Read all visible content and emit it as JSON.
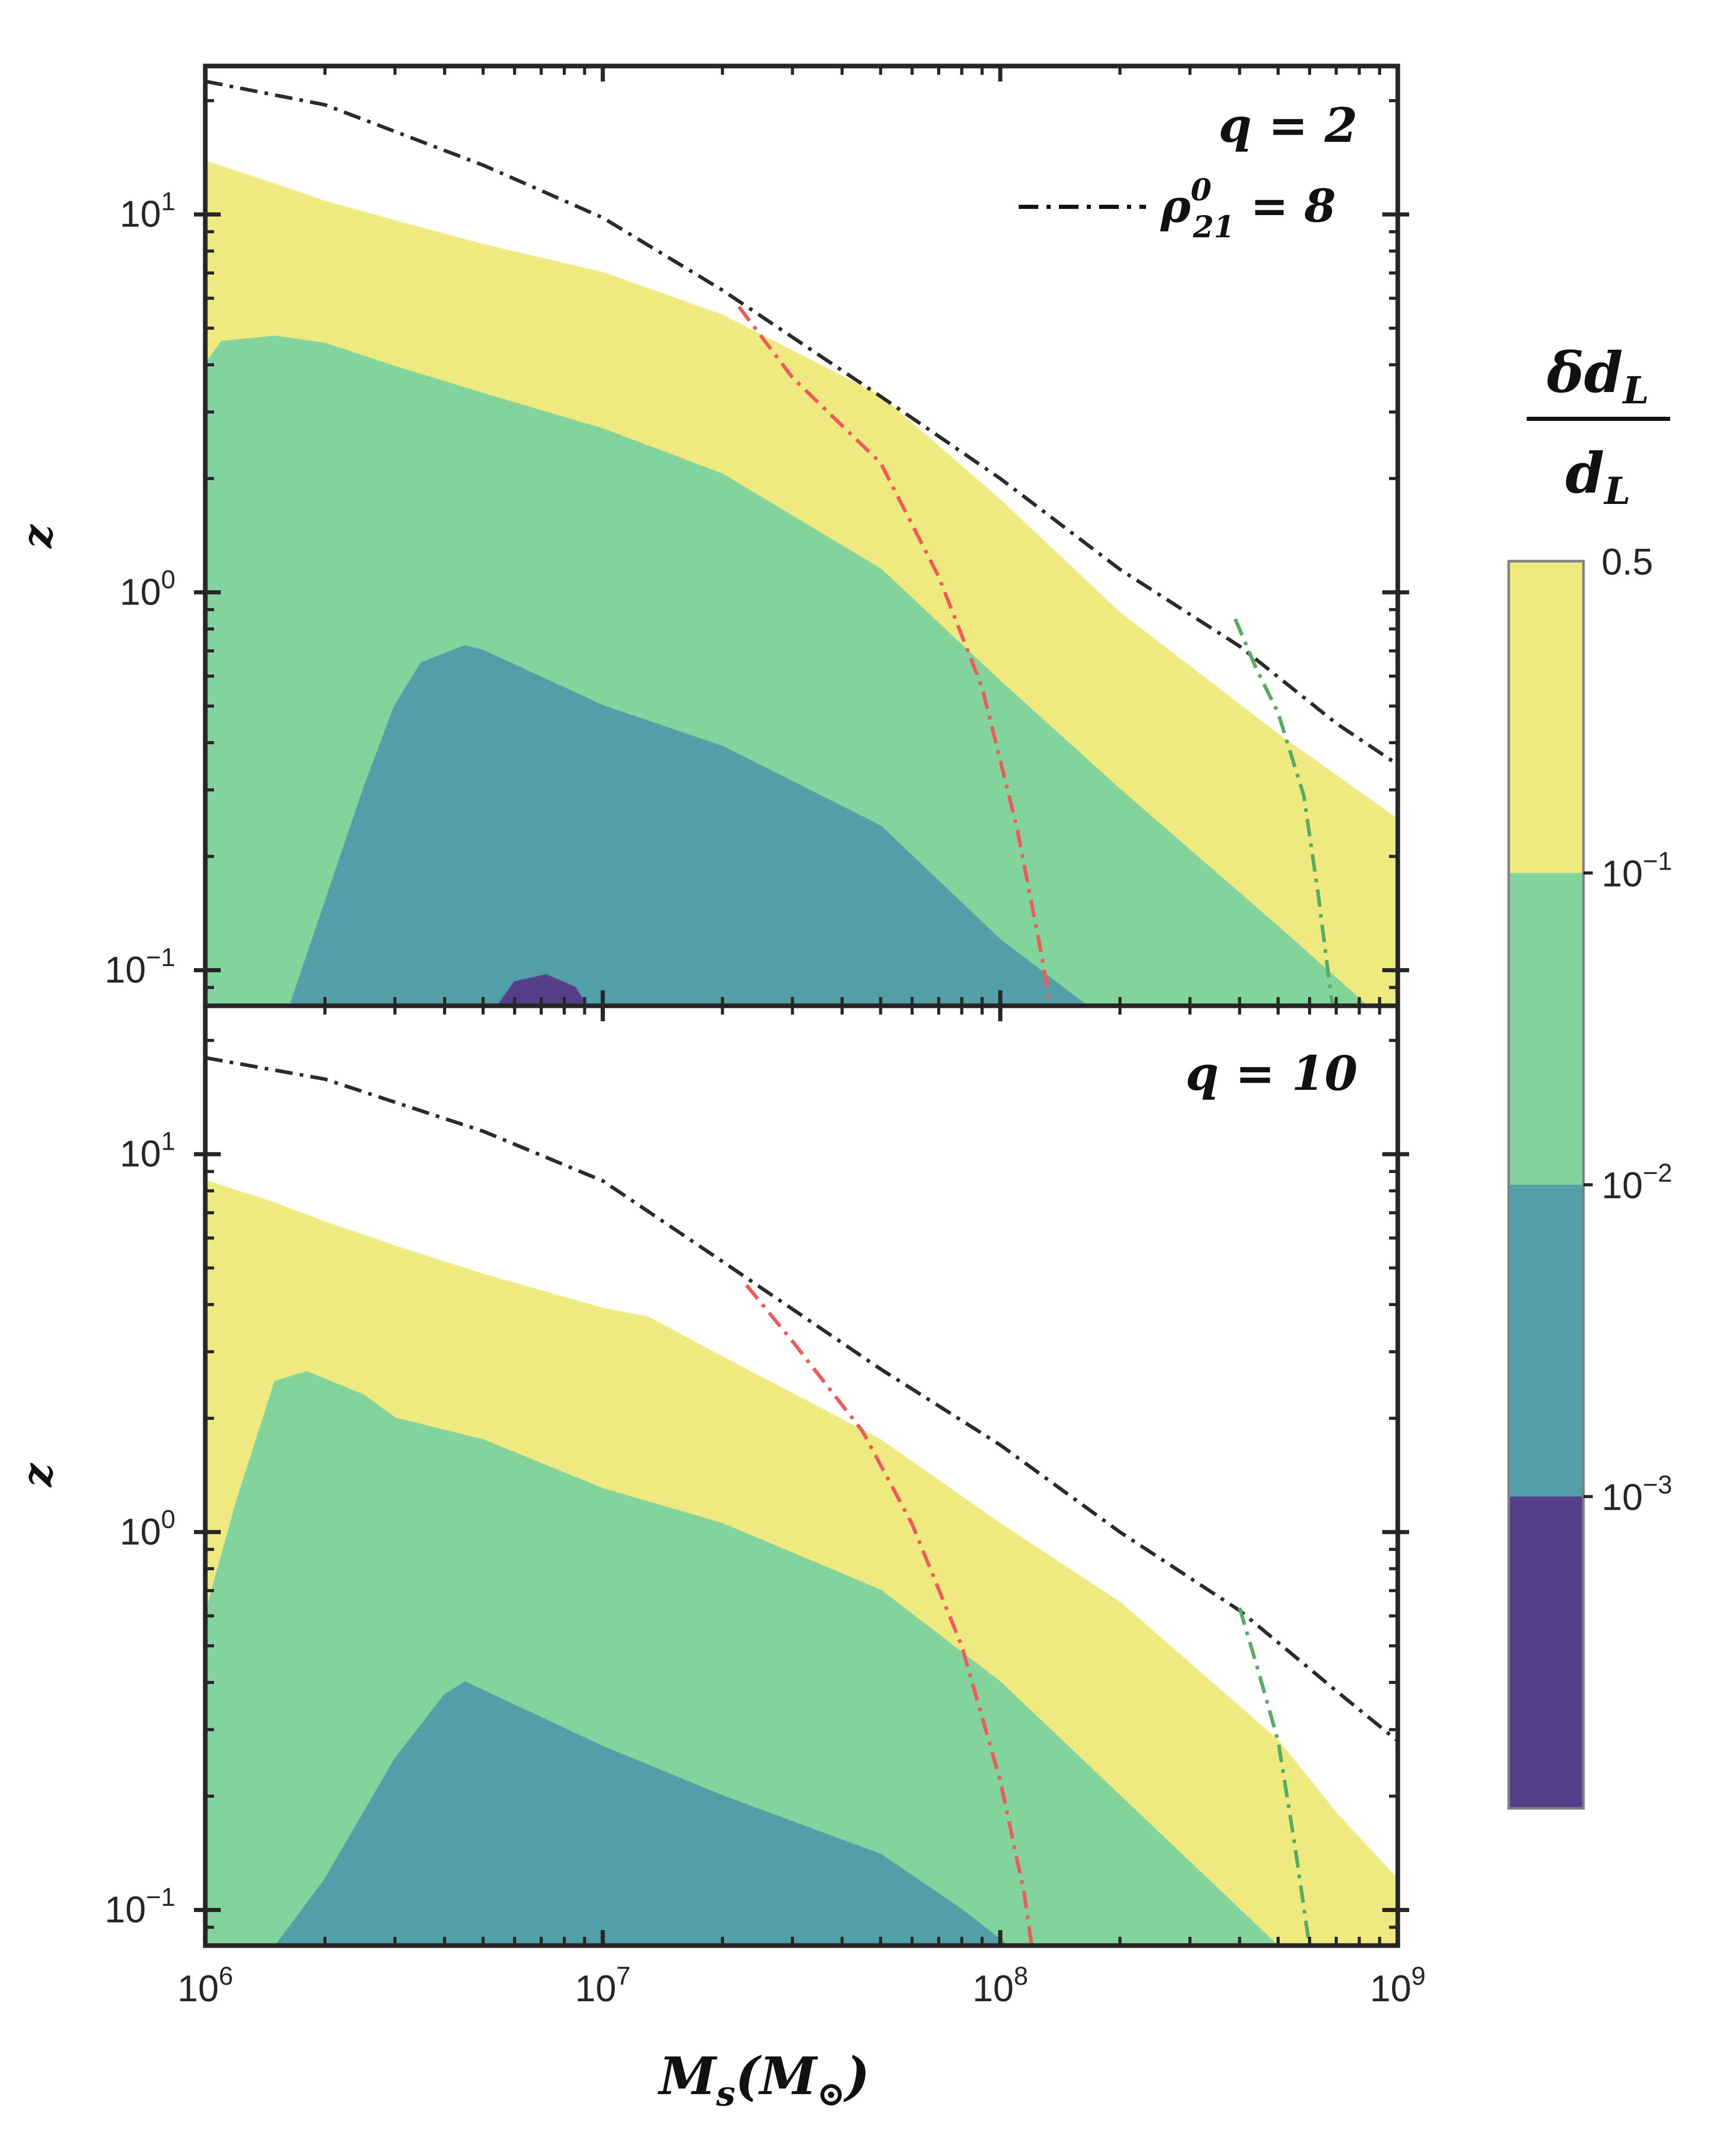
{
  "chart_data": [
    {
      "type": "contourf",
      "title": "",
      "panel_label": "q = 2",
      "xlabel": "M_s(M_⊙)",
      "ylabel": "z",
      "xscale": "log",
      "yscale": "log",
      "xlim": [
        1000000,
        1000000000
      ],
      "ylim": [
        0.08,
        25
      ],
      "grid": false,
      "legend": {
        "placement": "top-right",
        "entries": [
          {
            "label_base": "ρ",
            "label_sup": "0",
            "label_sub": "21",
            "label_rest": " = 8",
            "linestyle": "dashdot",
            "color": "#2b2b2b"
          }
        ]
      },
      "regions": [
        {
          "level": "0.1 – 0.5",
          "color": "#efea80",
          "upper": [
            [
              1000000.0,
              13.8
            ],
            [
              1500000.0,
              12.0
            ],
            [
              2000000.0,
              10.8
            ],
            [
              3000000.0,
              9.6
            ],
            [
              5000000.0,
              8.3
            ],
            [
              10000000.0,
              7.0
            ],
            [
              20000000.0,
              5.4
            ],
            [
              50000000.0,
              3.3
            ],
            [
              100000000.0,
              1.75
            ],
            [
              200000000.0,
              0.88
            ],
            [
              500000000.0,
              0.42
            ],
            [
              1000000000.0,
              0.25
            ]
          ]
        },
        {
          "level": "0.01 – 0.1",
          "color": "#82d39c",
          "upper": [
            [
              1000000.0,
              4.0
            ],
            [
              1100000.0,
              4.6
            ],
            [
              1500000.0,
              4.75
            ],
            [
              2000000.0,
              4.55
            ],
            [
              3000000.0,
              3.95
            ],
            [
              5000000.0,
              3.35
            ],
            [
              10000000.0,
              2.7
            ],
            [
              20000000.0,
              2.05
            ],
            [
              50000000.0,
              1.15
            ],
            [
              100000000.0,
              0.58
            ],
            [
              200000000.0,
              0.3
            ],
            [
              500000000.0,
              0.13
            ],
            [
              900000000.0,
              0.075
            ]
          ]
        },
        {
          "level": "0.001 – 0.01",
          "color": "#529ea9",
          "upper": [
            [
              1600000.0,
              0.075
            ],
            [
              2500000.0,
              0.3
            ],
            [
              3000000.0,
              0.5
            ],
            [
              3500000.0,
              0.65
            ],
            [
              4500000.0,
              0.72
            ],
            [
              5000000.0,
              0.7
            ],
            [
              10000000.0,
              0.5
            ],
            [
              20000000.0,
              0.39
            ],
            [
              50000000.0,
              0.24
            ],
            [
              100000000.0,
              0.12
            ],
            [
              180000000.0,
              0.075
            ]
          ]
        },
        {
          "level": "< 0.001",
          "color": "#553f8a",
          "upper": [
            [
              5200000.0,
              0.075
            ],
            [
              6000000.0,
              0.093
            ],
            [
              7200000.0,
              0.097
            ],
            [
              8500000.0,
              0.09
            ],
            [
              9500000.0,
              0.075
            ]
          ]
        }
      ],
      "lines": [
        {
          "name": "ρ⁰₂₁ = 8 horizon",
          "color": "#2b2b2b",
          "style": "dashdot",
          "points": [
            [
              1000000.0,
              22.5
            ],
            [
              2000000.0,
              19.5
            ],
            [
              5000000.0,
              13.5
            ],
            [
              10000000.0,
              9.8
            ],
            [
              20000000.0,
              6.3
            ],
            [
              50000000.0,
              3.3
            ],
            [
              100000000.0,
              2.0
            ],
            [
              200000000.0,
              1.15
            ],
            [
              400000000.0,
              0.72
            ],
            [
              700000000.0,
              0.45
            ],
            [
              1000000000.0,
              0.35
            ]
          ]
        },
        {
          "name": "red limit",
          "color": "#ef5a5a",
          "style": "dashdot",
          "points": [
            [
              22000000.0,
              5.7
            ],
            [
              30000000.0,
              3.7
            ],
            [
              50000000.0,
              2.2
            ],
            [
              70000000.0,
              1.1
            ],
            [
              90000000.0,
              0.56
            ],
            [
              110000000.0,
              0.24
            ],
            [
              128000000.0,
              0.105
            ],
            [
              135000000.0,
              0.075
            ]
          ]
        },
        {
          "name": "green limit",
          "color": "#56ab65",
          "style": "dashdot",
          "points": [
            [
              390000000.0,
              0.85
            ],
            [
              440000000.0,
              0.63
            ],
            [
              500000000.0,
              0.48
            ],
            [
              580000000.0,
              0.29
            ],
            [
              630000000.0,
              0.16
            ],
            [
              680000000.0,
              0.085
            ],
            [
              700000000.0,
              0.075
            ]
          ]
        }
      ],
      "x_ticks": [
        {
          "base": "10",
          "exp": "6"
        },
        {
          "base": "10",
          "exp": "7"
        },
        {
          "base": "10",
          "exp": "8"
        },
        {
          "base": "10",
          "exp": "9"
        }
      ],
      "y_ticks": [
        {
          "base": "10",
          "exp": "−1",
          "value": 0.1
        },
        {
          "base": "10",
          "exp": "0",
          "value": 1
        },
        {
          "base": "10",
          "exp": "1",
          "value": 10
        }
      ]
    },
    {
      "type": "contourf",
      "title": "",
      "panel_label": "q = 10",
      "xlabel": "M_s(M_⊙)",
      "ylabel": "z",
      "xscale": "log",
      "yscale": "log",
      "xlim": [
        1000000,
        1000000000
      ],
      "ylim": [
        0.08,
        25
      ],
      "grid": false,
      "regions": [
        {
          "level": "0.1 – 0.5",
          "color": "#efea80",
          "upper": [
            [
              1000000.0,
              8.5
            ],
            [
              1500000.0,
              7.4
            ],
            [
              2000000.0,
              6.6
            ],
            [
              3000000.0,
              5.7
            ],
            [
              5000000.0,
              4.8
            ],
            [
              10000000.0,
              3.9
            ],
            [
              13000000.0,
              3.7
            ],
            [
              20000000.0,
              2.9
            ],
            [
              50000000.0,
              1.75
            ],
            [
              100000000.0,
              1.05
            ],
            [
              200000000.0,
              0.65
            ],
            [
              500000000.0,
              0.28
            ],
            [
              700000000.0,
              0.18
            ],
            [
              1000000000.0,
              0.12
            ]
          ]
        },
        {
          "level": "0.01 – 0.1",
          "color": "#82d39c",
          "upper": [
            [
              1000000.0,
              0.6
            ],
            [
              1200000.0,
              1.2
            ],
            [
              1500000.0,
              2.5
            ],
            [
              1800000.0,
              2.65
            ],
            [
              2500000.0,
              2.3
            ],
            [
              3000000.0,
              2.0
            ],
            [
              5000000.0,
              1.75
            ],
            [
              10000000.0,
              1.3
            ],
            [
              20000000.0,
              1.05
            ],
            [
              50000000.0,
              0.7
            ],
            [
              100000000.0,
              0.4
            ],
            [
              200000000.0,
              0.2
            ],
            [
              500000000.0,
              0.08
            ]
          ]
        },
        {
          "level": "0.001 – 0.01",
          "color": "#529ea9",
          "upper": [
            [
              1500000.0,
              0.08
            ],
            [
              2000000.0,
              0.12
            ],
            [
              3000000.0,
              0.25
            ],
            [
              4000000.0,
              0.37
            ],
            [
              4500000.0,
              0.4
            ],
            [
              5000000.0,
              0.38
            ],
            [
              10000000.0,
              0.27
            ],
            [
              20000000.0,
              0.2
            ],
            [
              50000000.0,
              0.14
            ],
            [
              80000000.0,
              0.1
            ],
            [
              105000000.0,
              0.08
            ]
          ]
        }
      ],
      "lines": [
        {
          "name": "ρ⁰₂₁ = 8 horizon",
          "color": "#2b2b2b",
          "style": "dashdot",
          "points": [
            [
              1000000.0,
              18.0
            ],
            [
              2000000.0,
              15.8
            ],
            [
              5000000.0,
              11.5
            ],
            [
              10000000.0,
              8.5
            ],
            [
              20000000.0,
              5.2
            ],
            [
              50000000.0,
              2.7
            ],
            [
              100000000.0,
              1.7
            ],
            [
              200000000.0,
              1.0
            ],
            [
              400000000.0,
              0.62
            ],
            [
              700000000.0,
              0.38
            ],
            [
              1000000000.0,
              0.28
            ]
          ]
        },
        {
          "name": "red limit",
          "color": "#ef5a5a",
          "style": "dashdot",
          "points": [
            [
              23000000.0,
              4.5
            ],
            [
              30000000.0,
              3.2
            ],
            [
              45000000.0,
              1.85
            ],
            [
              60000000.0,
              1.05
            ],
            [
              80000000.0,
              0.5
            ],
            [
              100000000.0,
              0.22
            ],
            [
              115000000.0,
              0.11
            ],
            [
              120000000.0,
              0.08
            ]
          ]
        },
        {
          "name": "green limit",
          "color": "#56ab65",
          "style": "dashdot",
          "points": [
            [
              400000000.0,
              0.63
            ],
            [
              440000000.0,
              0.45
            ],
            [
              500000000.0,
              0.28
            ],
            [
              550000000.0,
              0.15
            ],
            [
              590000000.0,
              0.09
            ],
            [
              600000000.0,
              0.08
            ]
          ]
        }
      ],
      "x_ticks": [
        {
          "base": "10",
          "exp": "6"
        },
        {
          "base": "10",
          "exp": "7"
        },
        {
          "base": "10",
          "exp": "8"
        },
        {
          "base": "10",
          "exp": "9"
        }
      ],
      "y_ticks": [
        {
          "base": "10",
          "exp": "−1",
          "value": 0.1
        },
        {
          "base": "10",
          "exp": "0",
          "value": 1
        },
        {
          "base": "10",
          "exp": "1",
          "value": 10
        }
      ]
    }
  ],
  "colorbar": {
    "label_num": "δd",
    "label_num_sub": "L",
    "label_den": "d",
    "label_den_sub": "L",
    "bands": [
      {
        "color": "#efea80",
        "level": "0.1 – 0.5"
      },
      {
        "color": "#82d39c",
        "level": "0.01 – 0.1"
      },
      {
        "color": "#529ea9",
        "level": "0.001 – 0.01"
      },
      {
        "color": "#553f8a",
        "level": "< 0.001"
      }
    ],
    "ticks": [
      {
        "base": "0.5",
        "exp": ""
      },
      {
        "base": "10",
        "exp": "−1"
      },
      {
        "base": "10",
        "exp": "−2"
      },
      {
        "base": "10",
        "exp": "−3"
      }
    ]
  },
  "axes": {
    "xlabel_base": "M",
    "xlabel_sub": "s",
    "xlabel_rest": "(M",
    "xlabel_sun": "⊙",
    "xlabel_close": ")",
    "ylabel": "z"
  }
}
